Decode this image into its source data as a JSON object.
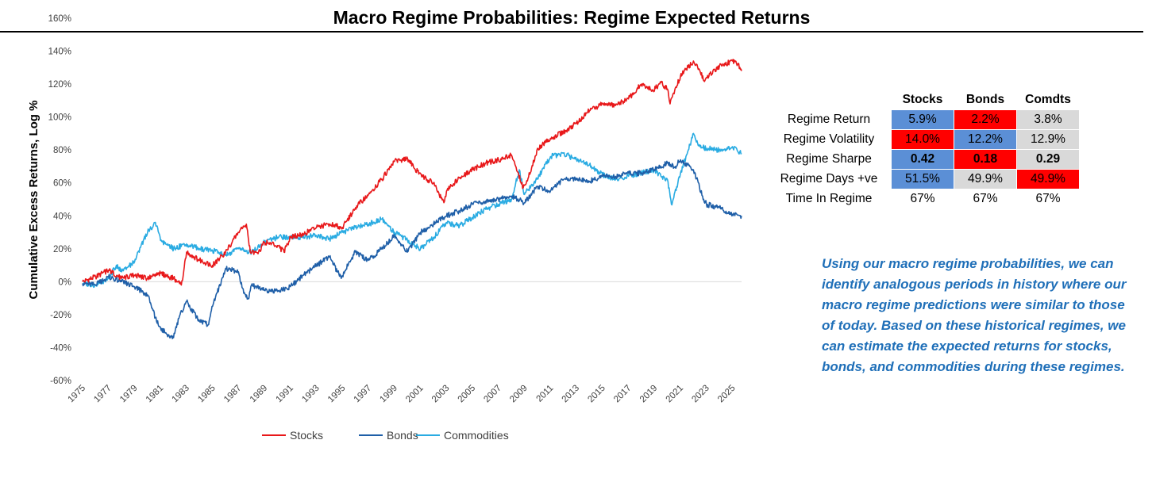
{
  "chart_data": {
    "type": "line",
    "title": "Macro Regime Probabilities: Regime Expected Returns",
    "ylabel": "Cumulative Excess Returns, Log %",
    "xlabel": "",
    "xlim": [
      1975,
      2025.7
    ],
    "ylim": [
      -60,
      160
    ],
    "yticks": [
      "160%",
      "140%",
      "120%",
      "100%",
      "80%",
      "60%",
      "40%",
      "20%",
      "0%",
      "-20%",
      "-40%",
      "-60%"
    ],
    "xticks": [
      "1975",
      "1977",
      "1979",
      "1981",
      "1983",
      "1985",
      "1987",
      "1989",
      "1991",
      "1993",
      "1995",
      "1997",
      "1999",
      "2001",
      "2003",
      "2005",
      "2007",
      "2009",
      "2011",
      "2013",
      "2015",
      "2017",
      "2019",
      "2021",
      "2023",
      "2025"
    ],
    "grid": false,
    "legend_position": "bottom",
    "series": [
      {
        "name": "Stocks",
        "color": "#e8181a",
        "x": [
          1975,
          1976,
          1977,
          1978,
          1979,
          1980,
          1981,
          1982,
          1982.6,
          1983,
          1984,
          1985,
          1986,
          1987,
          1987.6,
          1987.9,
          1988.5,
          1989,
          1990,
          1990.5,
          1991,
          1992,
          1993,
          1994,
          1995,
          1996,
          1997,
          1998,
          1999,
          2000,
          2000.6,
          2001.5,
          2002,
          2002.8,
          2003,
          2004,
          2005,
          2006,
          2007,
          2008,
          2008.9,
          2009.5,
          2010,
          2011,
          2012,
          2013,
          2014,
          2015,
          2016,
          2017,
          2018,
          2018.9,
          2019.5,
          2020,
          2020.2,
          2021,
          2022,
          2022.5,
          2022.8,
          2023,
          2024,
          2025,
          2025.4,
          2025.7
        ],
        "y": [
          0,
          3,
          7,
          2,
          4,
          2,
          5,
          2,
          -2,
          18,
          13,
          10,
          18,
          30,
          35,
          18,
          17,
          24,
          22,
          18,
          27,
          29,
          33,
          35,
          33,
          45,
          53,
          62,
          73,
          75,
          68,
          62,
          60,
          48,
          55,
          63,
          68,
          72,
          74,
          77,
          57,
          67,
          81,
          87,
          91,
          96,
          104,
          108,
          107,
          111,
          120,
          116,
          121,
          117,
          108,
          125,
          134,
          128,
          122,
          124,
          131,
          134,
          132,
          128
        ]
      },
      {
        "name": "Bonds",
        "color": "#1f5fa8",
        "x": [
          1975,
          1976,
          1977,
          1978,
          1979,
          1980,
          1980.6,
          1981,
          1981.5,
          1982,
          1982.5,
          1983,
          1984,
          1984.7,
          1985,
          1986,
          1987,
          1987.4,
          1987.8,
          1988,
          1989,
          1990,
          1991,
          1992,
          1993,
          1994,
          1994.9,
          1995.5,
          1996,
          1997,
          1998,
          1999,
          2000,
          2001,
          2002,
          2003,
          2004,
          2005,
          2006,
          2007,
          2008,
          2009,
          2010,
          2011,
          2012,
          2013,
          2014,
          2015,
          2016,
          2017,
          2018,
          2019,
          2020,
          2020.6,
          2021,
          2022,
          2022.7,
          2023,
          2024,
          2025,
          2025.7
        ],
        "y": [
          -1,
          -2,
          3,
          0,
          -3,
          -8,
          -22,
          -28,
          -32,
          -34,
          -20,
          -12,
          -24,
          -26,
          -15,
          8,
          6,
          -7,
          -10,
          -2,
          -5,
          -6,
          -3,
          4,
          10,
          15,
          2,
          12,
          18,
          13,
          20,
          28,
          18,
          30,
          35,
          40,
          43,
          47,
          49,
          50,
          52,
          48,
          58,
          55,
          62,
          62,
          61,
          64,
          64,
          66,
          66,
          68,
          72,
          70,
          74,
          68,
          52,
          47,
          45,
          41,
          40
        ]
      },
      {
        "name": "Commodities",
        "color": "#29abe2",
        "x": [
          1975,
          1976,
          1977,
          1977.6,
          1978,
          1979,
          1979.5,
          1980,
          1980.6,
          1981,
          1981.6,
          1982,
          1983,
          1984,
          1985,
          1986,
          1987,
          1988,
          1989,
          1990,
          1991,
          1992,
          1993,
          1994,
          1995,
          1996,
          1997,
          1998,
          1999,
          2000,
          2001,
          2002,
          2003,
          2004,
          2005,
          2006,
          2007,
          2008,
          2008.6,
          2009,
          2010,
          2011,
          2012,
          2013,
          2014,
          2015,
          2016,
          2017,
          2018,
          2019,
          2019.5,
          2020,
          2020.3,
          2020.8,
          2021,
          2021.6,
          2022,
          2022.5,
          2023,
          2024,
          2025,
          2025.7
        ],
        "y": [
          -1,
          -2,
          2,
          10,
          6,
          12,
          22,
          30,
          36,
          25,
          22,
          20,
          23,
          20,
          19,
          16,
          20,
          18,
          24,
          27,
          27,
          27,
          28,
          26,
          30,
          33,
          35,
          38,
          30,
          25,
          20,
          27,
          36,
          34,
          39,
          44,
          47,
          50,
          68,
          53,
          63,
          76,
          78,
          74,
          71,
          65,
          62,
          64,
          66,
          68,
          64,
          62,
          47,
          60,
          66,
          80,
          90,
          82,
          81,
          80,
          82,
          78
        ]
      }
    ]
  },
  "stats_table": {
    "headers": [
      "Stocks",
      "Bonds",
      "Comdts"
    ],
    "rows": [
      {
        "label": "Regime Return",
        "values": [
          "5.9%",
          "2.2%",
          "3.8%"
        ],
        "colors": [
          "#5b8fd6",
          "#ff0000",
          "#d9d9d9"
        ],
        "bold": false
      },
      {
        "label": "Regime Volatility",
        "values": [
          "14.0%",
          "12.2%",
          "12.9%"
        ],
        "colors": [
          "#ff0000",
          "#5b8fd6",
          "#d9d9d9"
        ],
        "bold": false
      },
      {
        "label": "Regime Sharpe",
        "values": [
          "0.42",
          "0.18",
          "0.29"
        ],
        "colors": [
          "#5b8fd6",
          "#ff0000",
          "#d9d9d9"
        ],
        "bold": true
      },
      {
        "label": "Regime Days +ve",
        "values": [
          "51.5%",
          "49.9%",
          "49.9%"
        ],
        "colors": [
          "#5b8fd6",
          "#d9d9d9",
          "#ff0000"
        ],
        "bold": false
      },
      {
        "label": "Time In Regime",
        "values": [
          "67%",
          "67%",
          "67%"
        ],
        "colors": [
          "#ffffff",
          "#ffffff",
          "#ffffff"
        ],
        "bold": false
      }
    ]
  },
  "commentary": "Using our macro regime probabilities, we can identify analogous periods in history where our macro regime predictions were similar to those of today. Based on these historical regimes, we can estimate the expected returns for stocks, bonds, and commodities during these regimes."
}
